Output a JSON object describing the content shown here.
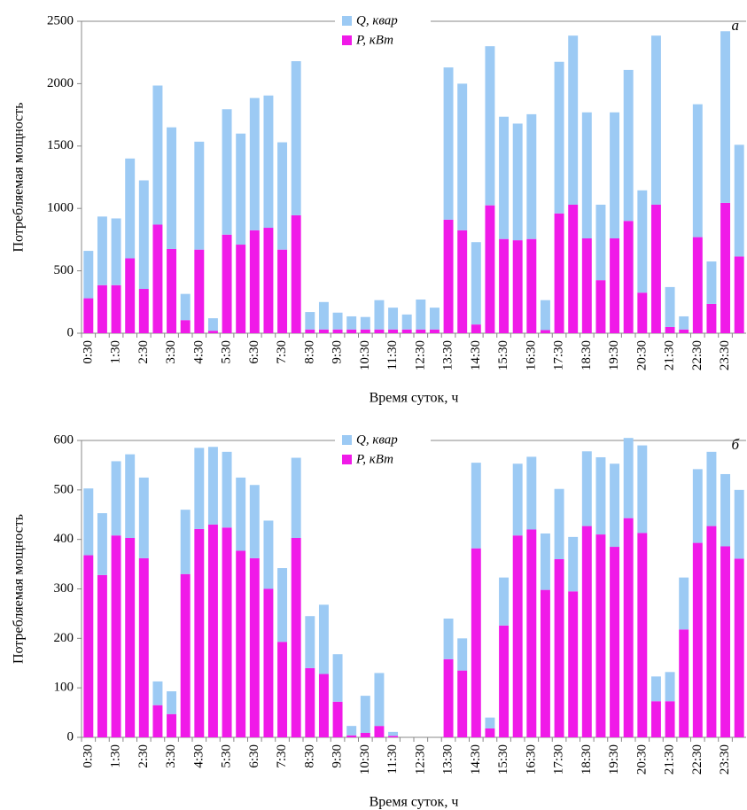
{
  "chart_data": [
    {
      "type": "bar",
      "stacked": true,
      "annotation": "а",
      "ylabel": "Потребляемая мощность",
      "xlabel": "Время суток, ч",
      "categories": [
        "0:30",
        null,
        "1:30",
        null,
        "2:30",
        null,
        "3:30",
        null,
        "4:30",
        null,
        "5:30",
        null,
        "6:30",
        null,
        "7:30",
        null,
        "8:30",
        null,
        "9:30",
        null,
        "10:30",
        null,
        "11:30",
        null,
        "12:30",
        null,
        "13:30",
        null,
        "14:30",
        null,
        "15:30",
        null,
        "16:30",
        null,
        "17:30",
        null,
        "18:30",
        null,
        "19:30",
        null,
        "20:30",
        null,
        "21:30",
        null,
        "22:30",
        null,
        "23:30",
        null
      ],
      "series": [
        {
          "name": "P, кВт",
          "color": "#f01ae8",
          "values": [
            280,
            385,
            385,
            600,
            355,
            870,
            675,
            105,
            670,
            20,
            790,
            710,
            825,
            845,
            670,
            945,
            30,
            30,
            30,
            30,
            30,
            30,
            30,
            30,
            30,
            30,
            910,
            825,
            70,
            1025,
            755,
            745,
            755,
            25,
            960,
            1030,
            760,
            425,
            760,
            900,
            325,
            1030,
            50,
            30,
            770,
            235,
            1045,
            615
          ]
        },
        {
          "name": "Q, квар",
          "color": "#9ccaf4",
          "values": [
            380,
            550,
            535,
            800,
            870,
            1115,
            975,
            210,
            865,
            100,
            1005,
            890,
            1060,
            1060,
            860,
            1235,
            140,
            220,
            135,
            105,
            100,
            235,
            175,
            120,
            240,
            175,
            1220,
            1175,
            660,
            1275,
            980,
            935,
            1000,
            240,
            1215,
            1355,
            1010,
            605,
            1010,
            1210,
            820,
            1355,
            320,
            105,
            1065,
            340,
            1375,
            895
          ]
        }
      ],
      "ylim": [
        0,
        2500
      ],
      "yticks": [
        0,
        500,
        1000,
        1500,
        2000,
        2500
      ],
      "grid": false
    },
    {
      "type": "bar",
      "stacked": true,
      "annotation": "б",
      "ylabel": "Потребляемая мощность",
      "xlabel": "Время суток, ч",
      "categories": [
        "0:30",
        null,
        "1:30",
        null,
        "2:30",
        null,
        "3:30",
        null,
        "4:30",
        null,
        "5:30",
        null,
        "6:30",
        null,
        "7:30",
        null,
        "8:30",
        null,
        "9:30",
        null,
        "10:30",
        null,
        "11:30",
        null,
        "12:30",
        null,
        "13:30",
        null,
        "14:30",
        null,
        "15:30",
        null,
        "16:30",
        null,
        "17:30",
        null,
        "18:30",
        null,
        "19:30",
        null,
        "20:30",
        null,
        "21:30",
        null,
        "22:30",
        null,
        "23:30",
        null
      ],
      "series": [
        {
          "name": "P, кВт",
          "color": "#f01ae8",
          "values": [
            368,
            328,
            408,
            403,
            362,
            65,
            47,
            330,
            421,
            430,
            424,
            377,
            362,
            300,
            193,
            403,
            140,
            128,
            72,
            4,
            9,
            23,
            3,
            0,
            0,
            0,
            158,
            135,
            382,
            18,
            226,
            408,
            420,
            298,
            360,
            295,
            427,
            410,
            385,
            443,
            413,
            73,
            73,
            218,
            393,
            427,
            386,
            361
          ]
        },
        {
          "name": "Q, квар",
          "color": "#9ccaf4",
          "values": [
            135,
            125,
            150,
            169,
            163,
            48,
            46,
            130,
            164,
            157,
            153,
            148,
            148,
            138,
            149,
            162,
            105,
            140,
            96,
            19,
            75,
            107,
            8,
            0,
            0,
            0,
            82,
            65,
            173,
            22,
            97,
            145,
            147,
            114,
            142,
            110,
            151,
            156,
            168,
            162,
            177,
            50,
            59,
            105,
            149,
            150,
            146,
            139
          ]
        }
      ],
      "ylim": [
        0,
        600
      ],
      "yticks": [
        0,
        100,
        200,
        300,
        400,
        500,
        600
      ],
      "grid": false
    }
  ]
}
